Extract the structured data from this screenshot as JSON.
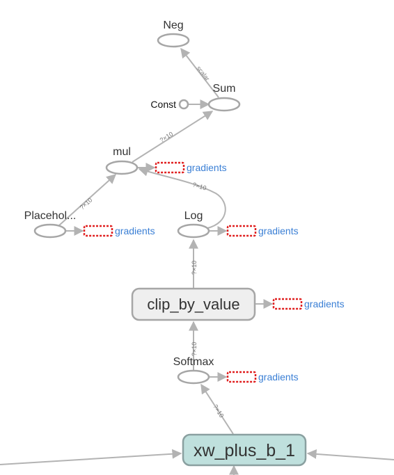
{
  "nodes": {
    "neg": "Neg",
    "sum": "Sum",
    "const": "Const",
    "mul": "mul",
    "placeholder": "Placehol...",
    "log": "Log",
    "clip_by_value": "clip_by_value",
    "softmax": "Softmax",
    "xw_plus_b": "xw_plus_b_1"
  },
  "gradients_label": "gradients",
  "edge_labels": {
    "sum_neg": "scalar",
    "mul_sum": "?×10",
    "log_mul": "?×10",
    "placeholder_mul": "?×10",
    "clip_log": "?×10",
    "softmax_clip": "?×10",
    "xw_softmax": "?×10"
  },
  "colors": {
    "edge": "#b3b3b3",
    "gradient_link": "#3a7fd5",
    "gradient_box": "#e02020",
    "metanode_gray": "#efefef",
    "metanode_teal": "#bfe0dd"
  }
}
